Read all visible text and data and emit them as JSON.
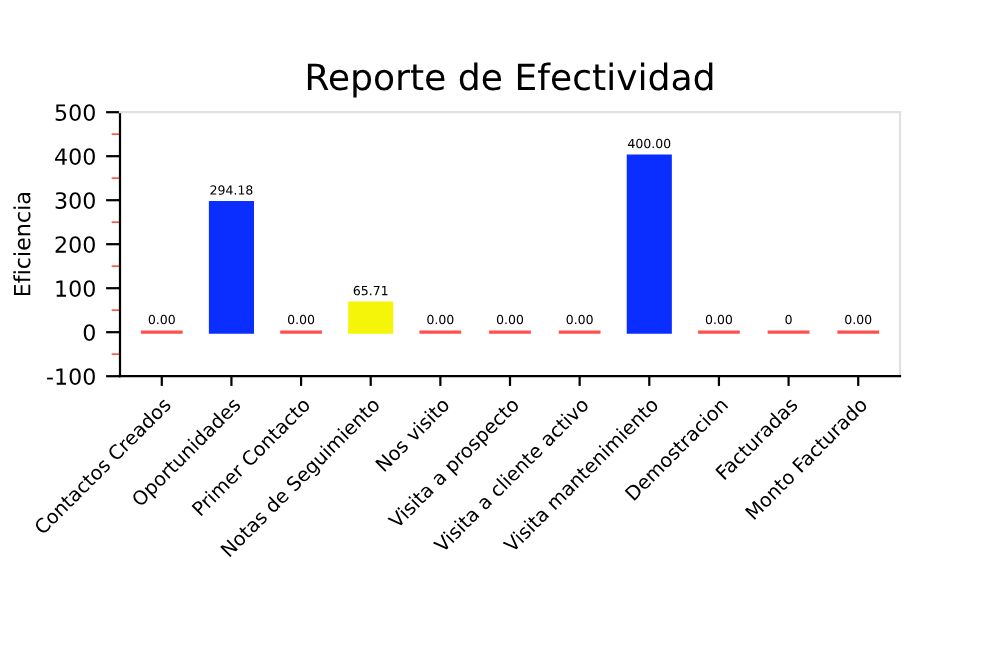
{
  "chart_data": {
    "type": "bar",
    "title": "Reporte de Efectividad",
    "ylabel": "Eficiencia",
    "categories": [
      "Contactos Creados",
      "Oportunidades",
      "Primer Contacto",
      "Notas de Seguimiento",
      "Nos visito",
      "Visita a prospecto",
      "Visita a cliente activo",
      "Visita mantenimiento",
      "Demostracion",
      "Facturadas",
      "Monto Facturado"
    ],
    "values": [
      0,
      294.18,
      0,
      65.71,
      0,
      0,
      0,
      400,
      0,
      0,
      0
    ],
    "colors": [
      "#ff5050",
      "#0a2eff",
      "#ff5050",
      "#f5f50a",
      "#ff5050",
      "#ff5050",
      "#ff5050",
      "#0a2eff",
      "#ff5050",
      "#ff5050",
      "#ff5050"
    ],
    "value_labels": [
      "0.00",
      "294.18",
      "0.00",
      "65.71",
      "0.00",
      "0.00",
      "0.00",
      "400.00",
      "0.00",
      "0",
      "0.00"
    ],
    "ylim": [
      -100,
      500
    ],
    "yticks": [
      -100,
      {
        "value": -50,
        "label": null
      },
      0,
      {
        "value": 50,
        "label": null
      },
      100,
      {
        "value": 150,
        "label": null
      },
      200,
      {
        "value": 250,
        "label": null
      },
      300,
      {
        "value": 350,
        "label": null
      },
      400,
      {
        "value": 450,
        "label": null
      },
      500
    ],
    "grid": false,
    "legend": false
  }
}
